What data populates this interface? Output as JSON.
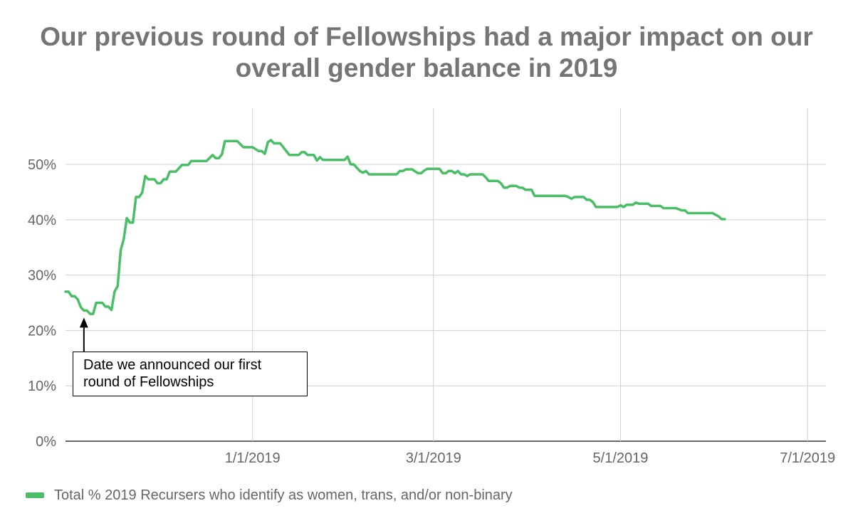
{
  "chart_data": {
    "type": "line",
    "title_lines": [
      "Our previous round of Fellowships had a major impact on our",
      "overall gender balance in 2019"
    ],
    "xlabel": "",
    "ylabel": "",
    "x_ticks": [
      "1/1/2019",
      "3/1/2019",
      "5/1/2019",
      "7/1/2019"
    ],
    "y_ticks": [
      "0%",
      "10%",
      "20%",
      "30%",
      "40%",
      "50%"
    ],
    "ylim": [
      0,
      50
    ],
    "xlim": [
      "2018-11-01",
      "2019-07-07"
    ],
    "grid": true,
    "legend_position": "bottom-left",
    "line_color": "#4ABE67",
    "series": [
      {
        "name": "Total % 2019 Recursers who identify as women, trans, and/or non-binary",
        "points": [
          [
            "2018-11-01",
            27.0
          ],
          [
            "2018-11-02",
            27.0
          ],
          [
            "2018-11-03",
            26.2
          ],
          [
            "2018-11-04",
            26.2
          ],
          [
            "2018-11-05",
            25.6
          ],
          [
            "2018-11-06",
            24.2
          ],
          [
            "2018-11-07",
            23.6
          ],
          [
            "2018-11-08",
            23.6
          ],
          [
            "2018-11-09",
            23.0
          ],
          [
            "2018-11-10",
            23.0
          ],
          [
            "2018-11-11",
            25.0
          ],
          [
            "2018-11-13",
            25.0
          ],
          [
            "2018-11-14",
            24.3
          ],
          [
            "2018-11-15",
            24.3
          ],
          [
            "2018-11-16",
            23.7
          ],
          [
            "2018-11-17",
            27.0
          ],
          [
            "2018-11-18",
            28.0
          ],
          [
            "2018-11-19",
            34.5
          ],
          [
            "2018-11-20",
            36.5
          ],
          [
            "2018-11-21",
            40.3
          ],
          [
            "2018-11-22",
            39.5
          ],
          [
            "2018-11-23",
            39.5
          ],
          [
            "2018-11-24",
            44.1
          ],
          [
            "2018-11-25",
            44.1
          ],
          [
            "2018-11-26",
            44.9
          ],
          [
            "2018-11-27",
            47.9
          ],
          [
            "2018-11-28",
            47.3
          ],
          [
            "2018-11-30",
            47.3
          ],
          [
            "2018-12-01",
            46.6
          ],
          [
            "2018-12-02",
            46.6
          ],
          [
            "2018-12-03",
            47.3
          ],
          [
            "2018-12-04",
            47.3
          ],
          [
            "2018-12-05",
            48.7
          ],
          [
            "2018-12-07",
            48.7
          ],
          [
            "2018-12-09",
            49.9
          ],
          [
            "2018-12-11",
            49.9
          ],
          [
            "2018-12-12",
            50.6
          ],
          [
            "2018-12-17",
            50.6
          ],
          [
            "2018-12-19",
            51.7
          ],
          [
            "2018-12-20",
            51.1
          ],
          [
            "2018-12-21",
            51.1
          ],
          [
            "2018-12-22",
            51.8
          ],
          [
            "2018-12-23",
            54.2
          ],
          [
            "2018-12-27",
            54.2
          ],
          [
            "2018-12-29",
            53.1
          ],
          [
            "2019-01-01",
            53.1
          ],
          [
            "2019-01-03",
            52.4
          ],
          [
            "2019-01-04",
            52.4
          ],
          [
            "2019-01-05",
            51.9
          ],
          [
            "2019-01-06",
            54.0
          ],
          [
            "2019-01-07",
            54.4
          ],
          [
            "2019-01-08",
            53.8
          ],
          [
            "2019-01-10",
            53.8
          ],
          [
            "2019-01-13",
            51.7
          ],
          [
            "2019-01-16",
            51.7
          ],
          [
            "2019-01-17",
            52.2
          ],
          [
            "2019-01-18",
            52.2
          ],
          [
            "2019-01-19",
            51.7
          ],
          [
            "2019-01-21",
            51.7
          ],
          [
            "2019-01-22",
            50.7
          ],
          [
            "2019-01-23",
            51.3
          ],
          [
            "2019-01-24",
            50.8
          ],
          [
            "2019-01-31",
            50.8
          ],
          [
            "2019-02-01",
            51.4
          ],
          [
            "2019-02-02",
            50.0
          ],
          [
            "2019-02-03",
            50.0
          ],
          [
            "2019-02-05",
            48.8
          ],
          [
            "2019-02-06",
            48.5
          ],
          [
            "2019-02-07",
            48.8
          ],
          [
            "2019-02-08",
            48.2
          ],
          [
            "2019-02-17",
            48.2
          ],
          [
            "2019-02-18",
            48.8
          ],
          [
            "2019-02-19",
            48.8
          ],
          [
            "2019-02-20",
            49.1
          ],
          [
            "2019-02-22",
            49.1
          ],
          [
            "2019-02-24",
            48.4
          ],
          [
            "2019-02-25",
            48.4
          ],
          [
            "2019-02-26",
            48.9
          ],
          [
            "2019-02-27",
            49.2
          ],
          [
            "2019-03-03",
            49.2
          ],
          [
            "2019-03-04",
            48.4
          ],
          [
            "2019-03-05",
            48.4
          ],
          [
            "2019-03-06",
            48.8
          ],
          [
            "2019-03-07",
            48.8
          ],
          [
            "2019-03-08",
            48.4
          ],
          [
            "2019-03-09",
            48.8
          ],
          [
            "2019-03-10",
            48.2
          ],
          [
            "2019-03-11",
            48.2
          ],
          [
            "2019-03-12",
            47.9
          ],
          [
            "2019-03-13",
            48.2
          ],
          [
            "2019-03-17",
            48.2
          ],
          [
            "2019-03-18",
            47.7
          ],
          [
            "2019-03-19",
            47.0
          ],
          [
            "2019-03-22",
            47.0
          ],
          [
            "2019-03-23",
            46.6
          ],
          [
            "2019-03-24",
            45.8
          ],
          [
            "2019-03-25",
            45.8
          ],
          [
            "2019-03-26",
            46.1
          ],
          [
            "2019-03-28",
            46.1
          ],
          [
            "2019-03-29",
            45.8
          ],
          [
            "2019-03-30",
            45.8
          ],
          [
            "2019-03-31",
            45.4
          ],
          [
            "2019-04-02",
            45.4
          ],
          [
            "2019-04-03",
            44.3
          ],
          [
            "2019-04-13",
            44.3
          ],
          [
            "2019-04-14",
            44.1
          ],
          [
            "2019-04-15",
            43.8
          ],
          [
            "2019-04-16",
            44.1
          ],
          [
            "2019-04-19",
            44.1
          ],
          [
            "2019-04-20",
            43.6
          ],
          [
            "2019-04-21",
            43.6
          ],
          [
            "2019-04-22",
            43.2
          ],
          [
            "2019-04-23",
            42.3
          ],
          [
            "2019-04-30",
            42.3
          ],
          [
            "2019-05-01",
            42.6
          ],
          [
            "2019-05-02",
            42.3
          ],
          [
            "2019-05-03",
            42.7
          ],
          [
            "2019-05-05",
            42.7
          ],
          [
            "2019-05-06",
            43.1
          ],
          [
            "2019-05-07",
            42.9
          ],
          [
            "2019-05-10",
            42.9
          ],
          [
            "2019-05-11",
            42.5
          ],
          [
            "2019-05-14",
            42.5
          ],
          [
            "2019-05-15",
            42.1
          ],
          [
            "2019-05-19",
            42.1
          ],
          [
            "2019-05-21",
            41.7
          ],
          [
            "2019-05-22",
            41.7
          ],
          [
            "2019-05-23",
            41.2
          ],
          [
            "2019-05-31",
            41.2
          ],
          [
            "2019-06-02",
            40.6
          ],
          [
            "2019-06-03",
            40.1
          ],
          [
            "2019-06-04",
            40.1
          ]
        ]
      }
    ],
    "annotation": {
      "lines": [
        "Date we announced our first",
        "round of Fellowships"
      ],
      "target": [
        "2018-11-07",
        23.6
      ]
    }
  }
}
